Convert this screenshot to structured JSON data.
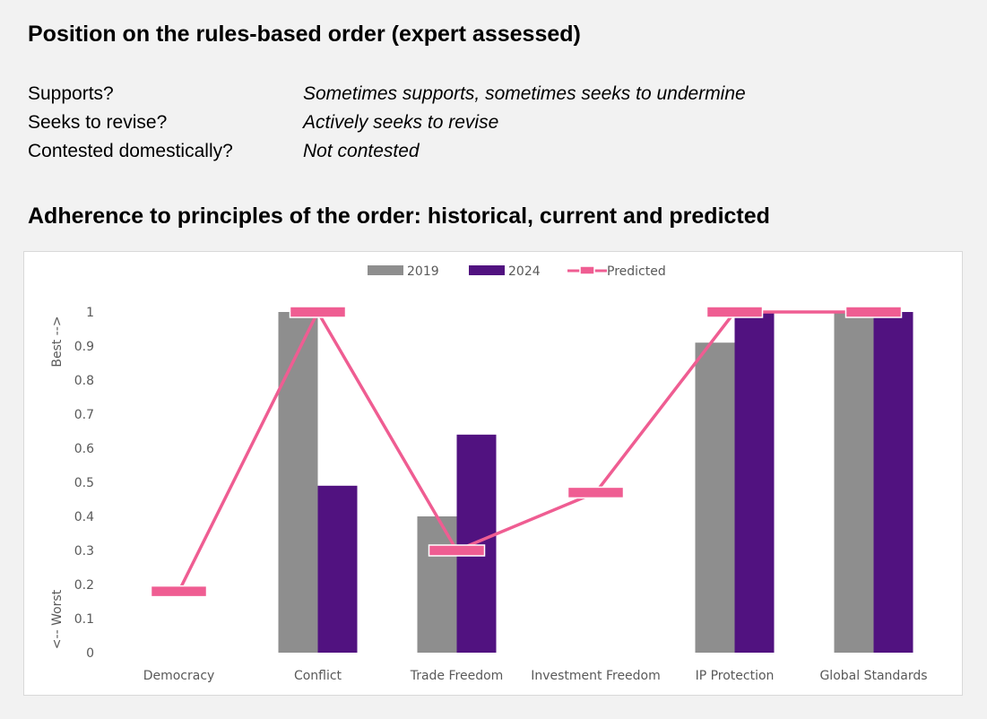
{
  "header": {
    "title": "Position on the rules-based order (expert assessed)"
  },
  "position": [
    {
      "label": "Supports?",
      "value": "Sometimes supports, sometimes seeks to undermine"
    },
    {
      "label": "Seeks to revise?",
      "value": "Actively seeks to revise"
    },
    {
      "label": "Contested domestically?",
      "value": "Not contested"
    }
  ],
  "chart_title": "Adherence to principles of the order: historical, current and predicted",
  "chart_data": {
    "type": "bar",
    "categories": [
      "Democracy",
      "Conflict",
      "Trade Freedom",
      "Investment Freedom",
      "IP Protection",
      "Global Standards"
    ],
    "series": [
      {
        "name": "2019",
        "type": "bar",
        "color": "#8e8e8e",
        "values": [
          null,
          1.0,
          0.4,
          null,
          0.91,
          1.0
        ]
      },
      {
        "name": "2024",
        "type": "bar",
        "color": "#511280",
        "values": [
          null,
          0.49,
          0.64,
          null,
          1.0,
          1.0
        ]
      },
      {
        "name": "Predicted",
        "type": "line",
        "color": "#ef5d92",
        "values": [
          0.18,
          1.0,
          0.3,
          0.47,
          1.0,
          1.0
        ]
      }
    ],
    "ylim": [
      0,
      1
    ],
    "yticks": [
      "0",
      "0.1",
      "0.2",
      "0.3",
      "0.4",
      "0.5",
      "0.6",
      "0.7",
      "0.8",
      "0.9",
      "1"
    ],
    "ylabel_top": "Best -->",
    "ylabel_bottom": "<-- Worst",
    "legend": "top-center",
    "grid": false
  }
}
